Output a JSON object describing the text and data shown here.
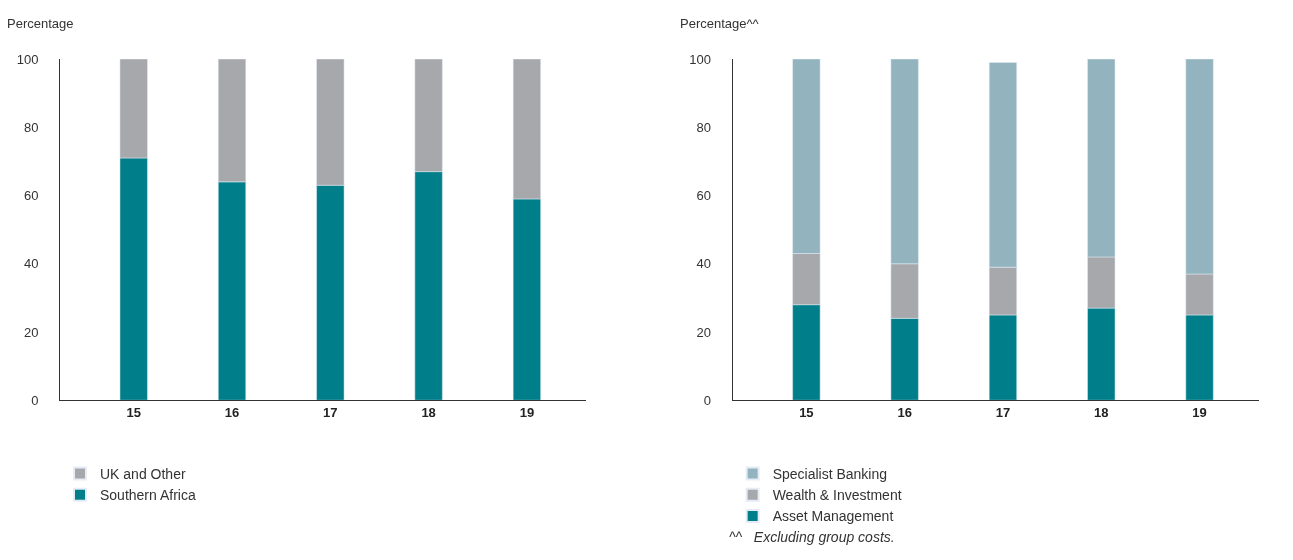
{
  "chart_data": [
    {
      "type": "bar",
      "stacked": true,
      "ylabel": "Percentage",
      "categories": [
        "15",
        "16",
        "17",
        "18",
        "19"
      ],
      "ylim": [
        0,
        100
      ],
      "yticks": [
        0,
        20,
        40,
        60,
        80,
        100
      ],
      "legend": "bottom left",
      "series": [
        {
          "name": "Southern Africa",
          "color": "#007f8a",
          "values": [
            71,
            64,
            63,
            67,
            59
          ]
        },
        {
          "name": "UK and Other",
          "color": "#a7a8ab",
          "values": [
            29,
            36,
            37,
            33,
            41
          ]
        }
      ]
    },
    {
      "type": "bar",
      "stacked": true,
      "ylabel": "Percentage^^",
      "categories": [
        "15",
        "16",
        "17",
        "18",
        "19"
      ],
      "ylim": [
        0,
        100
      ],
      "yticks": [
        0,
        20,
        40,
        60,
        80,
        100
      ],
      "legend": "bottom left",
      "annotations": [
        "^^   Excluding group costs."
      ],
      "series": [
        {
          "name": "Asset Management",
          "color": "#007f8a",
          "values": [
            28,
            24,
            25,
            27,
            25
          ]
        },
        {
          "name": "Wealth & Investment",
          "color": "#a7a8ab",
          "values": [
            15,
            16,
            14,
            15,
            12
          ]
        },
        {
          "name": "Specialist Banking",
          "color": "#93b4bf",
          "values": [
            57,
            60,
            60,
            58,
            63
          ]
        }
      ]
    }
  ]
}
